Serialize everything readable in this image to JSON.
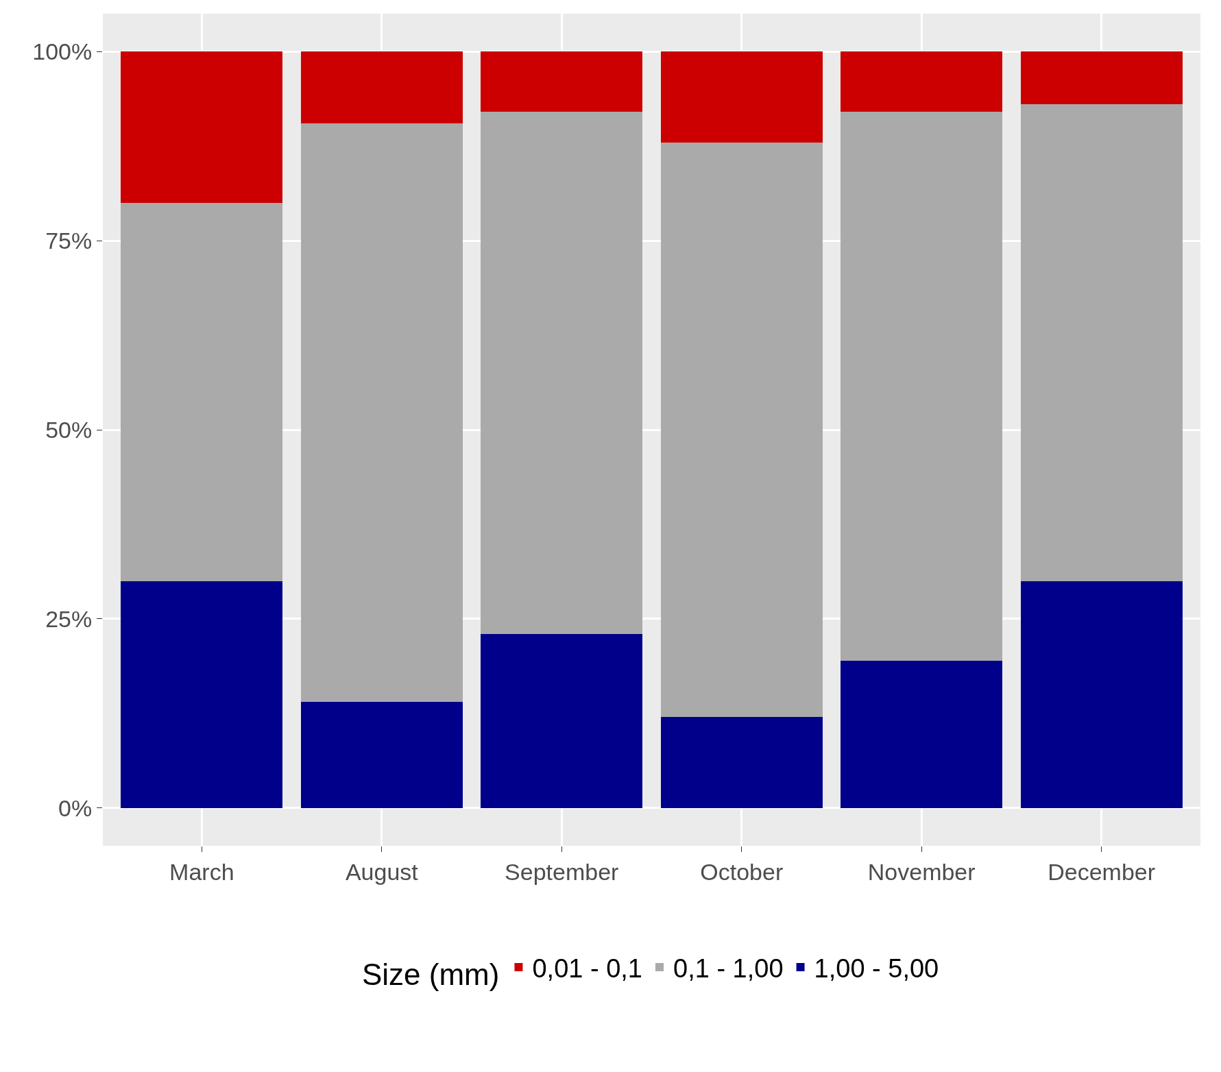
{
  "chart_data": {
    "type": "bar",
    "stacked": true,
    "categories": [
      "March",
      "August",
      "September",
      "October",
      "November",
      "December"
    ],
    "series": [
      {
        "name": "1,00 - 5,00",
        "color": "#00008b",
        "values": [
          30,
          14,
          23,
          12,
          19.5,
          30
        ]
      },
      {
        "name": "0,1 - 1,00",
        "color": "#aaaaaa",
        "values": [
          50,
          76.5,
          69,
          76,
          72.5,
          63
        ]
      },
      {
        "name": "0,01 - 0,1",
        "color": "#cc0000",
        "values": [
          20,
          9.5,
          8,
          12,
          8,
          7
        ]
      }
    ],
    "legend_title": "Size (mm)",
    "legend": "bottom",
    "ylim": [
      -5,
      105
    ],
    "yticks": [
      {
        "value": 0,
        "label": "0%"
      },
      {
        "value": 25,
        "label": "25%"
      },
      {
        "value": 50,
        "label": "50%"
      },
      {
        "value": 75,
        "label": "75%"
      },
      {
        "value": 100,
        "label": "100%"
      }
    ],
    "grid": true
  }
}
